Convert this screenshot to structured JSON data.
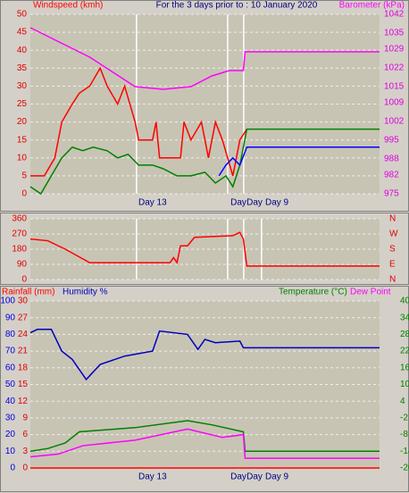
{
  "chart_data": [
    {
      "type": "line",
      "title": "For the 3 days prior to : 10 January 2020",
      "xlim": [
        0,
        100
      ],
      "xticks": [
        {
          "value": 35,
          "label": "Day 13"
        },
        {
          "value": 59.6,
          "label": "Day"
        },
        {
          "value": 64.2,
          "label": "Day"
        },
        {
          "value": 70.6,
          "label": "Day 9"
        }
      ],
      "x_gridlines": [
        30.4,
        56.5,
        61.1
      ],
      "ylim": [
        0,
        50
      ],
      "yticks": [
        0,
        5,
        10,
        15,
        20,
        25,
        30,
        35,
        40,
        45,
        50
      ],
      "y2lim": [
        975,
        1042
      ],
      "y2ticks": [
        975,
        982,
        988,
        995,
        1002,
        1009,
        1015,
        1022,
        1029,
        1035,
        1042
      ],
      "grid": true,
      "series": [
        {
          "name": "Windspeed (kmh)",
          "color": "#ff0000",
          "x": [
            0,
            4,
            7,
            9,
            12,
            14,
            17,
            20,
            22,
            25,
            27,
            30,
            31,
            35,
            36,
            37,
            43,
            44,
            46,
            49,
            51,
            53,
            55,
            58,
            60,
            62
          ],
          "values": [
            5,
            5,
            10,
            20,
            25,
            28,
            30,
            35,
            30,
            25,
            30,
            20,
            15,
            15,
            20,
            10,
            10,
            20,
            15,
            20,
            10,
            20,
            15,
            5,
            15,
            18
          ]
        },
        {
          "color": "#008000",
          "x": [
            0,
            3,
            6,
            9,
            12,
            15,
            18,
            22,
            25,
            28,
            31,
            35,
            38,
            42,
            46,
            50,
            53,
            56,
            58,
            60,
            62,
            100
          ],
          "values": [
            2,
            0,
            5,
            10,
            13,
            12,
            13,
            12,
            10,
            11,
            8,
            8,
            7,
            5,
            5,
            6,
            3,
            5,
            2,
            8,
            18,
            18
          ]
        },
        {
          "color": "#0000ff",
          "x": [
            54,
            56,
            58,
            60,
            62,
            100
          ],
          "values": [
            5,
            8,
            10,
            8,
            13,
            13
          ]
        },
        {
          "name": "Barometer (kPa)",
          "color": "#ff00ff",
          "axis": "y2",
          "x": [
            0,
            17,
            30,
            38,
            46,
            52,
            57,
            61,
            61.5,
            100
          ],
          "values": [
            1037,
            1026,
            1015,
            1014,
            1015,
            1019,
            1021,
            1021,
            1028,
            1028
          ]
        }
      ]
    },
    {
      "type": "line",
      "xlim": [
        0,
        100
      ],
      "x_gridlines": [
        30.4,
        56.5,
        61.1,
        66.2
      ],
      "ylim": [
        0,
        360
      ],
      "yticks": [
        0,
        90,
        180,
        270,
        360
      ],
      "y2_labels": [
        "N",
        "E",
        "S",
        "W",
        "N"
      ],
      "grid": true,
      "series": [
        {
          "color": "#ff0000",
          "x": [
            0,
            5,
            10,
            17,
            30,
            40,
            41,
            42,
            43,
            45,
            47,
            58,
            60,
            61,
            62,
            100
          ],
          "values": [
            240,
            230,
            180,
            100,
            100,
            100,
            130,
            100,
            200,
            200,
            250,
            260,
            280,
            240,
            80,
            80
          ]
        }
      ]
    },
    {
      "type": "line",
      "xlim": [
        0,
        100
      ],
      "xticks": [
        {
          "value": 35,
          "label": "Day 13"
        },
        {
          "value": 59.6,
          "label": "Day"
        },
        {
          "value": 64.2,
          "label": "Day"
        },
        {
          "value": 70.6,
          "label": "Day 9"
        }
      ],
      "x_gridlines": [],
      "ylim": [
        0,
        100
      ],
      "yticks": [
        0,
        10,
        20,
        30,
        40,
        50,
        60,
        70,
        80,
        90,
        100
      ],
      "y3lim": [
        0,
        30
      ],
      "y3ticks": [
        0,
        3,
        6,
        9,
        12,
        15,
        18,
        21,
        24,
        27,
        30
      ],
      "y2lim": [
        -20,
        40
      ],
      "y2ticks": [
        -20,
        -14,
        -8,
        -2,
        4,
        10,
        16,
        22,
        28,
        34,
        40
      ],
      "grid": true,
      "series": [
        {
          "name": "Rainfall (mm)",
          "color": "#ff0000",
          "axis": "y3",
          "x": [
            0,
            100
          ],
          "values": [
            0,
            0
          ]
        },
        {
          "name": "Humidity %",
          "color": "#0000c0",
          "x": [
            0,
            2,
            6,
            9,
            12,
            16,
            20,
            27,
            35,
            37,
            45,
            48,
            50,
            53,
            60,
            61,
            100
          ],
          "values": [
            81,
            83,
            83,
            70,
            65,
            53,
            62,
            67,
            70,
            82,
            80,
            71,
            77,
            75,
            76,
            72,
            72
          ]
        },
        {
          "name": "Temperature (°C)",
          "color": "#008000",
          "axis": "y2",
          "x": [
            0,
            5,
            10,
            14,
            30,
            45,
            52,
            61,
            61.5,
            100
          ],
          "values": [
            -14,
            -13,
            -11,
            -7,
            -5.5,
            -3,
            -4.5,
            -7,
            -14,
            -14
          ]
        },
        {
          "name": "Dew Point",
          "color": "#ff00ff",
          "axis": "y2",
          "x": [
            0,
            8,
            15,
            30,
            45,
            55,
            61,
            61.5,
            100
          ],
          "values": [
            -16,
            -15,
            -12,
            -10,
            -6,
            -9,
            -8,
            -16.5,
            -16.5
          ]
        }
      ]
    }
  ]
}
